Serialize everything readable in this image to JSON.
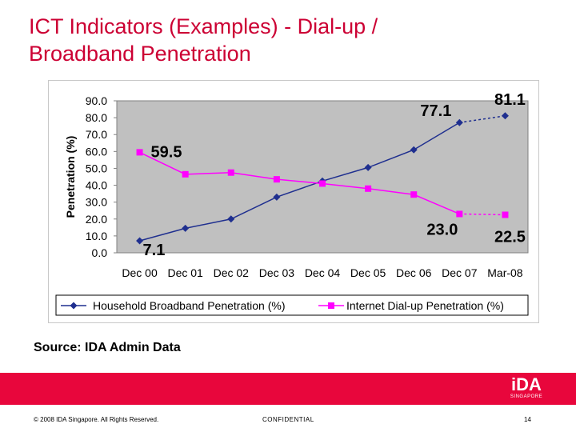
{
  "slide": {
    "title_line1": "ICT Indicators (Examples) - Dial-up /",
    "title_line2": "Broadband Penetration",
    "source": "Source: IDA Admin Data",
    "footer_copyright": "© 2008 IDA Singapore. All Rights Reserved.",
    "footer_confidential": "CONFIDENTIAL",
    "page_number": "14",
    "logo_text": "iDA",
    "logo_subtext": "SINGAPORE"
  },
  "colors": {
    "title": "#cc0033",
    "footer_bar": "#e8063c",
    "plot_bg": "#c0c0c0",
    "broadband": "#1f2f8f",
    "dialup": "#ff00ff"
  },
  "chart_data": {
    "type": "line",
    "ylabel": "Penetration (%)",
    "ylim": [
      0,
      90
    ],
    "yticks": [
      "0.0",
      "10.0",
      "20.0",
      "30.0",
      "40.0",
      "50.0",
      "60.0",
      "70.0",
      "80.0",
      "90.0"
    ],
    "categories": [
      "Dec 00",
      "Dec 01",
      "Dec 02",
      "Dec 03",
      "Dec 04",
      "Dec 05",
      "Dec 06",
      "Dec 07",
      "Mar-08"
    ],
    "series": [
      {
        "name": "Household Broadband Penetration (%)",
        "marker": "diamond",
        "values": [
          7.1,
          14.5,
          20.0,
          33.0,
          42.5,
          50.5,
          61.0,
          77.1,
          81.1
        ],
        "dashed_last_segment": true
      },
      {
        "name": "Internet Dial-up Penetration (%)",
        "marker": "square",
        "values": [
          59.5,
          46.5,
          47.5,
          43.5,
          41.0,
          38.0,
          34.5,
          23.0,
          22.5
        ],
        "dashed_last_segment": true
      }
    ],
    "annotations": [
      {
        "series": 0,
        "index": 0,
        "text": "7.1"
      },
      {
        "series": 0,
        "index": 7,
        "text": "77.1"
      },
      {
        "series": 0,
        "index": 8,
        "text": "81.1"
      },
      {
        "series": 1,
        "index": 0,
        "text": "59.5"
      },
      {
        "series": 1,
        "index": 7,
        "text": "23.0"
      },
      {
        "series": 1,
        "index": 8,
        "text": "22.5"
      }
    ],
    "grid": false,
    "legend_position": "bottom"
  }
}
